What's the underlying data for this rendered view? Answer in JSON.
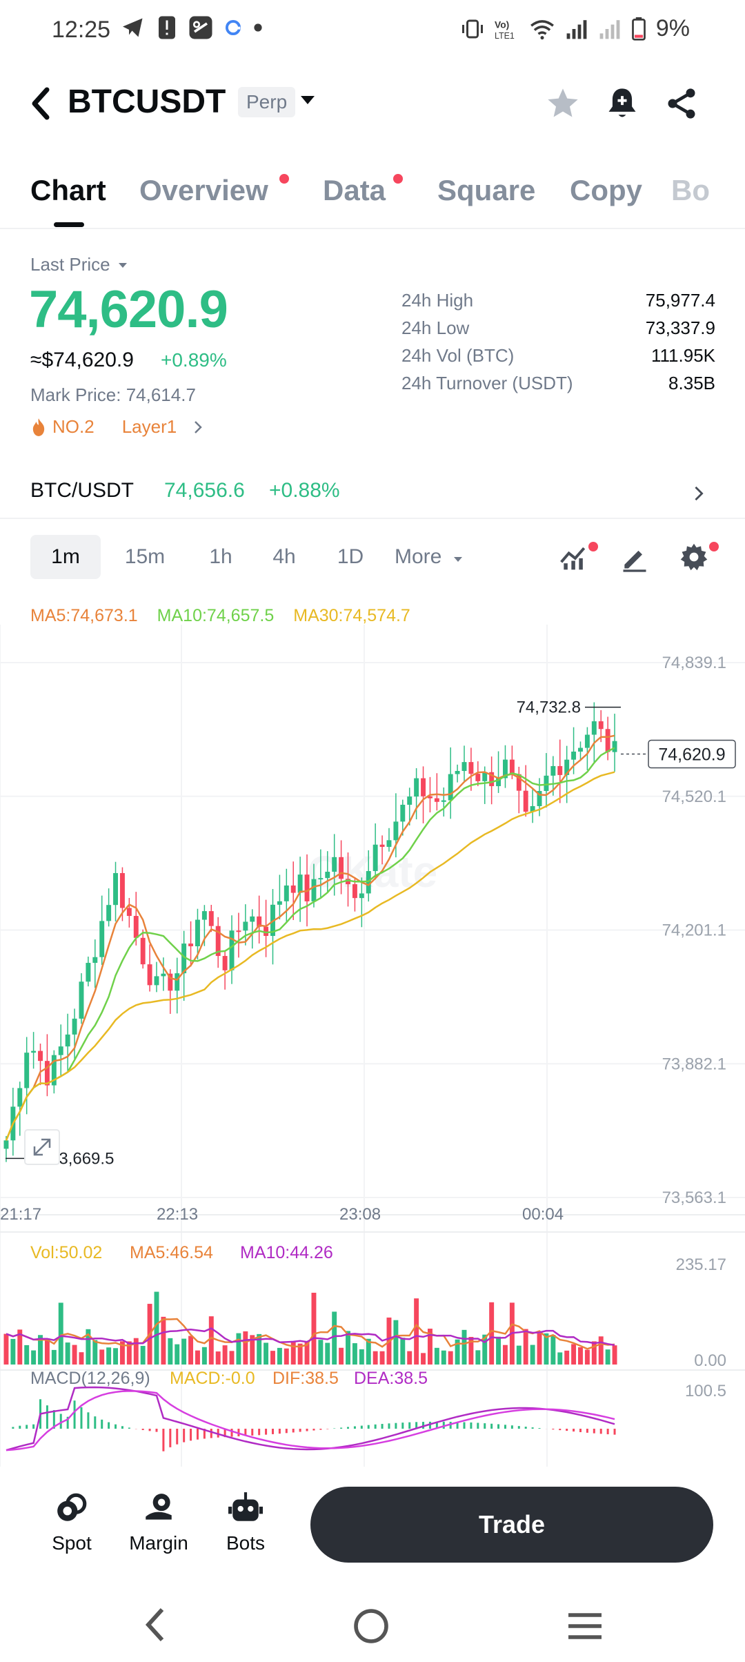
{
  "status": {
    "time": "12:25",
    "battery": "9%",
    "icons": [
      "telegram-icon",
      "alert-icon",
      "app-icon",
      "google-icon",
      "dot-icon",
      "vibrate-icon",
      "volte-icon",
      "wifi-icon",
      "signal-icon",
      "signal2-icon",
      "battery-icon"
    ]
  },
  "header": {
    "symbol": "BTCUSDT",
    "badge": "Perp"
  },
  "tabs": [
    {
      "label": "Chart",
      "active": true,
      "dot": false
    },
    {
      "label": "Overview",
      "active": false,
      "dot": true
    },
    {
      "label": "Data",
      "active": false,
      "dot": true
    },
    {
      "label": "Square",
      "active": false,
      "dot": false
    },
    {
      "label": "Copy",
      "active": false,
      "dot": false
    },
    {
      "label": "Bo",
      "active": false,
      "dot": false
    }
  ],
  "price": {
    "last_label": "Last Price",
    "last": "74,620.9",
    "usd": "≈$74,620.9",
    "change": "+0.89%",
    "mark_label": "Mark Price:",
    "mark": "74,614.7",
    "rank": "NO.2",
    "tag": "Layer1"
  },
  "stats": [
    {
      "label": "24h High",
      "value": "75,977.4"
    },
    {
      "label": "24h Low",
      "value": "73,337.9"
    },
    {
      "label": "24h Vol (BTC)",
      "value": "111.95K"
    },
    {
      "label": "24h Turnover (USDT)",
      "value": "8.35B"
    }
  ],
  "spot": {
    "pair": "BTC/USDT",
    "price": "74,656.6",
    "change": "+0.88%"
  },
  "intervals": [
    {
      "label": "1m",
      "active": true
    },
    {
      "label": "15m",
      "active": false
    },
    {
      "label": "1h",
      "active": false
    },
    {
      "label": "4h",
      "active": false
    },
    {
      "label": "1D",
      "active": false
    },
    {
      "label": "More",
      "active": false
    }
  ],
  "ma_legend": {
    "ma5": "MA5:74,673.1",
    "ma10": "MA10:74,657.5",
    "ma30": "MA30:74,574.7"
  },
  "colors": {
    "up": "#2ebd85",
    "down": "#f6465d",
    "ma5": "#e8833a",
    "ma10": "#6fd14a",
    "ma30": "#e8b923",
    "purple": "#b02bc4",
    "accent_orange": "#e8833a"
  },
  "chart_data": {
    "type": "candlestick",
    "y_ticks": [
      "74,839.1",
      "74,520.1",
      "74,201.1",
      "73,882.1",
      "73,563.1"
    ],
    "ylim": [
      73563.1,
      74839.1
    ],
    "x_ticks": [
      "21:17",
      "22:13",
      "23:08",
      "00:04"
    ],
    "high_marker": "74,732.8",
    "low_marker": "73,669.5",
    "last_price_tag": "74,620.9",
    "close_path": [
      73700,
      73940,
      73850,
      73980,
      74150,
      74330,
      74180,
      74050,
      74110,
      74260,
      74120,
      74240,
      74210,
      74330,
      74280,
      74380,
      74260,
      74410,
      74470,
      74540,
      74500,
      74610,
      74560,
      74590,
      74440,
      74580,
      74630,
      74690,
      74620
    ],
    "volume": {
      "vol_label": "Vol:50.02",
      "ma5_label": "MA5:46.54",
      "ma10_label": "MA10:44.26",
      "y_ticks": [
        "235.17",
        "0.00"
      ]
    },
    "macd": {
      "title": "MACD(12,26,9)",
      "macd_label": "MACD:-0.0",
      "dif_label": "DIF:38.5",
      "dea_label": "DEA:38.5",
      "y_top": "100.5"
    }
  },
  "bottom": {
    "spot": "Spot",
    "margin": "Margin",
    "bots": "Bots",
    "trade": "Trade"
  }
}
